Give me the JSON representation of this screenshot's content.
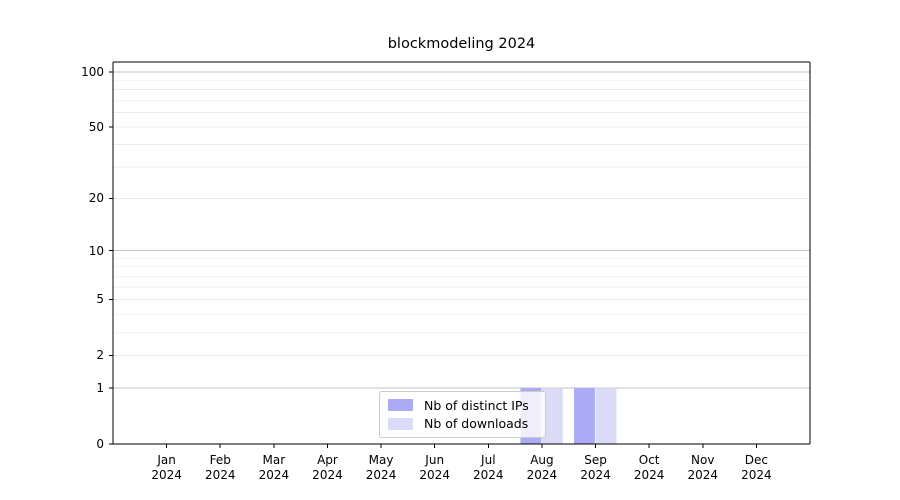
{
  "figure": {
    "title": "blockmodeling 2024"
  },
  "chart_data": {
    "type": "bar",
    "title": "blockmodeling 2024",
    "categories": [
      "Jan",
      "Feb",
      "Mar",
      "Apr",
      "May",
      "Jun",
      "Jul",
      "Aug",
      "Sep",
      "Oct",
      "Nov",
      "Dec"
    ],
    "category_year": "2024",
    "series": [
      {
        "name": "Nb of distinct IPs",
        "color": "#aaaaf5",
        "values": [
          0,
          0,
          0,
          0,
          0,
          0,
          0,
          1,
          1,
          0,
          0,
          0
        ]
      },
      {
        "name": "Nb of downloads",
        "color": "#dbdbf8",
        "values": [
          0,
          0,
          0,
          0,
          0,
          0,
          0,
          1,
          1,
          0,
          0,
          0
        ]
      }
    ],
    "xlabel": "",
    "ylabel": "",
    "yscale": "log1p",
    "ylim": [
      0,
      113
    ],
    "y_ticks": [
      0,
      1,
      2,
      5,
      10,
      20,
      50,
      100
    ],
    "y_major_gridlines": [
      1,
      10,
      100
    ],
    "y_minor_gridlines": [
      2,
      3,
      4,
      5,
      6,
      7,
      8,
      9,
      20,
      30,
      40,
      50,
      60,
      70,
      80,
      90
    ],
    "grid": "horizontal",
    "legend_position": "bottom-center-inside",
    "colors": {
      "major_grid": "#c6c6c6",
      "minor_grid": "#ebebeb",
      "spine": "#000000",
      "text": "#000000",
      "background": "#ffffff"
    }
  }
}
